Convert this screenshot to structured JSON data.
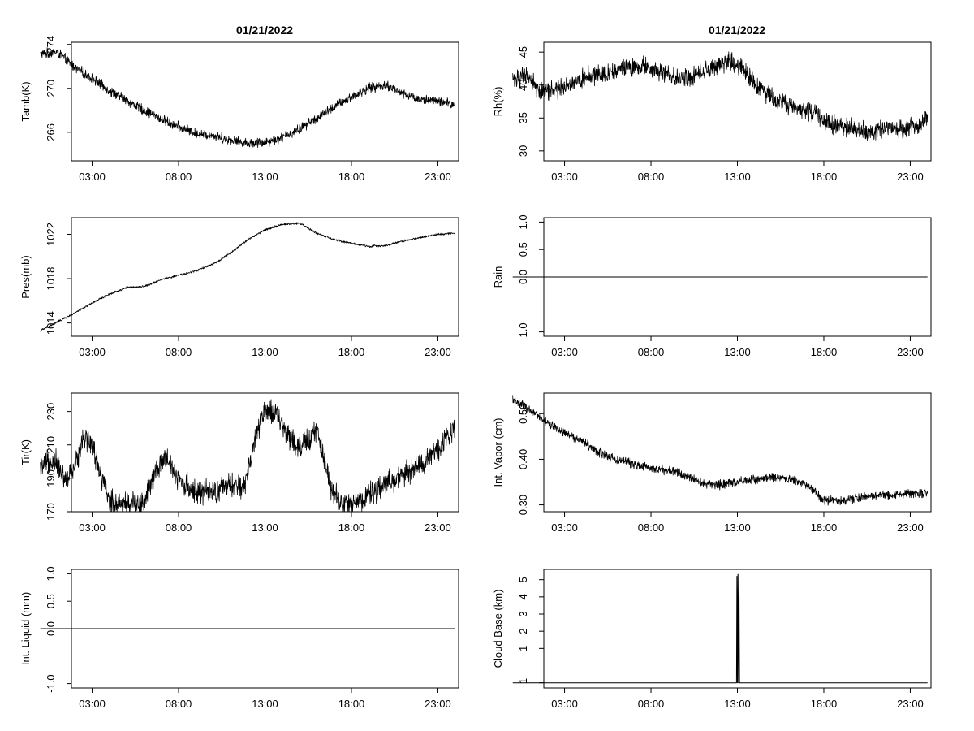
{
  "titles": [
    "01/21/2022",
    "01/21/2022"
  ],
  "chart_data": [
    {
      "type": "line",
      "ylabel": "Tamb(K)",
      "xlim": [
        "00:00",
        "24:00"
      ],
      "x_ticks": [
        "03:00",
        "08:00",
        "13:00",
        "18:00",
        "23:00"
      ],
      "ylim": [
        263.4,
        274.2
      ],
      "y_ticks": [
        "266",
        "270",
        "274"
      ],
      "x_hours": [
        0.0,
        0.5,
        1.0,
        2.0,
        3.0,
        4.0,
        5.0,
        6.0,
        7.0,
        8.0,
        9.0,
        10.0,
        11.0,
        12.0,
        13.0,
        14.0,
        15.0,
        16.0,
        17.0,
        18.0,
        19.0,
        20.0,
        21.0,
        22.0,
        23.0,
        24.0
      ],
      "y": [
        273.1,
        273.2,
        273.3,
        271.9,
        270.9,
        269.8,
        268.9,
        268.0,
        267.2,
        266.5,
        265.9,
        265.7,
        265.3,
        265.0,
        265.1,
        265.5,
        266.3,
        267.3,
        268.3,
        269.2,
        270.0,
        270.3,
        269.5,
        269.0,
        268.8,
        268.5
      ],
      "noise": 0.55
    },
    {
      "type": "line",
      "ylabel": "Pres(mb)",
      "xlim": [
        "00:00",
        "24:00"
      ],
      "x_ticks": [
        "03:00",
        "08:00",
        "13:00",
        "18:00",
        "23:00"
      ],
      "ylim": [
        1012.8,
        1023.5
      ],
      "y_ticks": [
        "1014",
        "1018",
        "1022"
      ],
      "x_hours": [
        0.0,
        1.0,
        2.0,
        3.0,
        4.0,
        5.0,
        6.0,
        7.0,
        8.0,
        9.0,
        10.0,
        11.0,
        12.0,
        13.0,
        14.0,
        15.0,
        16.0,
        17.0,
        18.0,
        19.0,
        20.0,
        21.0,
        22.0,
        23.0,
        24.0
      ],
      "y": [
        1013.3,
        1014.1,
        1014.9,
        1015.8,
        1016.6,
        1017.2,
        1017.3,
        1017.9,
        1018.3,
        1018.7,
        1019.3,
        1020.3,
        1021.5,
        1022.4,
        1022.9,
        1023.0,
        1022.1,
        1021.5,
        1021.2,
        1020.9,
        1021.0,
        1021.4,
        1021.7,
        1022.0,
        1022.1
      ],
      "noise": 0.12
    },
    {
      "type": "line",
      "ylabel": "Tir(K)",
      "xlim": [
        "00:00",
        "24:00"
      ],
      "x_ticks": [
        "03:00",
        "08:00",
        "13:00",
        "18:00",
        "23:00"
      ],
      "ylim": [
        170.0,
        241.0
      ],
      "y_ticks": [
        "170",
        "190",
        "210",
        "230"
      ],
      "x_hours": [
        0.0,
        0.8,
        1.5,
        2.0,
        2.5,
        3.0,
        3.5,
        4.0,
        5.0,
        6.0,
        6.7,
        7.3,
        8.0,
        9.0,
        10.0,
        11.0,
        11.8,
        12.5,
        13.0,
        13.6,
        14.2,
        15.0,
        16.0,
        16.8,
        17.5,
        18.0,
        19.0,
        20.0,
        21.0,
        22.0,
        23.0,
        24.0
      ],
      "y": [
        195.0,
        202.0,
        188.0,
        197.0,
        216.0,
        210.0,
        192.0,
        176.0,
        175.0,
        176.0,
        194.0,
        204.0,
        189.0,
        182.0,
        181.0,
        186.0,
        184.0,
        217.0,
        232.0,
        228.0,
        218.0,
        208.0,
        218.0,
        186.0,
        174.0,
        175.0,
        180.0,
        186.0,
        192.0,
        198.0,
        207.0,
        222.0
      ],
      "noise": 9.0
    },
    {
      "type": "line",
      "ylabel": "Int. Liquid (mm)",
      "xlim": [
        "00:00",
        "24:00"
      ],
      "x_ticks": [
        "03:00",
        "08:00",
        "13:00",
        "18:00",
        "23:00"
      ],
      "ylim": [
        -1.08,
        1.08
      ],
      "y_ticks": [
        "-1.0",
        "0.0",
        "0.5",
        "1.0"
      ],
      "x_hours": [
        0.0,
        24.0
      ],
      "y": [
        0.0,
        0.0
      ],
      "noise": 0
    },
    {
      "type": "line",
      "ylabel": "Rh(%)",
      "xlim": [
        "00:00",
        "24:00"
      ],
      "x_ticks": [
        "03:00",
        "08:00",
        "13:00",
        "18:00",
        "23:00"
      ],
      "ylim": [
        28.5,
        46.5
      ],
      "y_ticks": [
        "30",
        "35",
        "40",
        "45"
      ],
      "x_hours": [
        0.0,
        1.0,
        1.5,
        2.5,
        3.5,
        4.5,
        5.5,
        6.5,
        7.5,
        8.5,
        9.5,
        10.5,
        11.5,
        12.5,
        13.5,
        14.5,
        15.5,
        16.5,
        17.5,
        18.5,
        19.5,
        20.5,
        21.5,
        22.5,
        23.5,
        24.0
      ],
      "y": [
        41.0,
        41.2,
        39.0,
        39.2,
        40.5,
        41.5,
        41.8,
        42.5,
        42.8,
        42.0,
        41.0,
        41.5,
        42.5,
        43.5,
        42.0,
        39.0,
        37.5,
        36.5,
        35.5,
        34.0,
        33.5,
        32.8,
        33.2,
        33.5,
        33.8,
        35.0
      ],
      "noise": 1.8
    },
    {
      "type": "line",
      "ylabel": "Rain",
      "xlim": [
        "00:00",
        "24:00"
      ],
      "x_ticks": [
        "03:00",
        "08:00",
        "13:00",
        "18:00",
        "23:00"
      ],
      "ylim": [
        -1.08,
        1.08
      ],
      "y_ticks": [
        "-1.0",
        "0.0",
        "0.5",
        "1.0"
      ],
      "x_hours": [
        0.0,
        24.0
      ],
      "y": [
        0.0,
        0.0
      ],
      "noise": 0
    },
    {
      "type": "line",
      "ylabel": "Int. Vapor (cm)",
      "xlim": [
        "00:00",
        "24:00"
      ],
      "x_ticks": [
        "03:00",
        "08:00",
        "13:00",
        "18:00",
        "23:00"
      ],
      "ylim": [
        0.285,
        0.545
      ],
      "y_ticks": [
        "0.30",
        "0.40",
        "0.50"
      ],
      "x_hours": [
        0.0,
        0.5,
        1.0,
        2.0,
        3.0,
        4.0,
        5.0,
        6.0,
        7.0,
        8.0,
        9.0,
        10.0,
        11.0,
        12.0,
        13.0,
        14.0,
        15.0,
        16.0,
        17.0,
        18.0,
        19.0,
        20.0,
        21.0,
        22.0,
        23.0,
        24.0
      ],
      "y": [
        0.53,
        0.522,
        0.505,
        0.48,
        0.458,
        0.44,
        0.415,
        0.4,
        0.39,
        0.38,
        0.375,
        0.365,
        0.348,
        0.344,
        0.35,
        0.355,
        0.36,
        0.355,
        0.345,
        0.31,
        0.31,
        0.315,
        0.32,
        0.322,
        0.325,
        0.325
      ],
      "noise": 0.012
    },
    {
      "type": "line",
      "ylabel": "Cloud Base (km)",
      "xlim": [
        "00:00",
        "24:00"
      ],
      "x_ticks": [
        "03:00",
        "08:00",
        "13:00",
        "18:00",
        "23:00"
      ],
      "ylim": [
        -1.3,
        5.6
      ],
      "y_ticks": [
        "-1",
        "1",
        "2",
        "3",
        "4",
        "5"
      ],
      "x_hours": [
        0.0,
        12.95,
        12.97,
        13.0,
        13.03,
        13.06,
        13.09,
        13.12,
        13.14,
        24.0
      ],
      "y": [
        -1.0,
        -1.0,
        5.2,
        -1.0,
        5.3,
        -1.0,
        5.4,
        -1.0,
        -1.0,
        -1.0
      ],
      "noise": 0
    }
  ]
}
